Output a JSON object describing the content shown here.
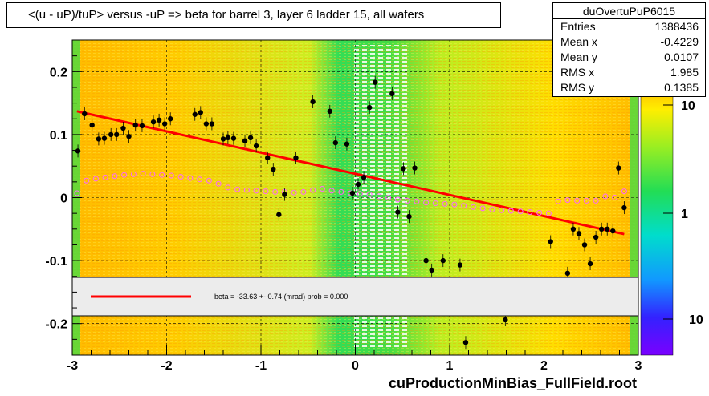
{
  "title": "<(u - uP)/tuP> versus  -uP => beta for barrel 3, layer 6 ladder 15, all wafers",
  "stats": {
    "name": "duOvertuPuP6015",
    "rows": [
      {
        "label": "Entries",
        "value": "1388436"
      },
      {
        "label": "Mean x",
        "value": "-0.4229"
      },
      {
        "label": "Mean y",
        "value": "0.0107"
      },
      {
        "label": "RMS x",
        "value": "1.985"
      },
      {
        "label": "RMS y",
        "value": "0.1385"
      }
    ]
  },
  "legend_text": "beta =  -33.63 +-  0.74 (mrad) prob = 0.000",
  "footer": "cuProductionMinBias_FullField.root",
  "colors": {
    "fit_line": "#ff0000",
    "profile_open": "#ff66ff",
    "points": "#000000",
    "band_green": "#33dd33",
    "background_orange": "#ffcc00"
  },
  "chart_data": {
    "type": "scatter",
    "title": "<(u - uP)/tuP> versus  -uP => beta for barrel 3, layer 6 ladder 15, all wafers",
    "xlim": [
      -3,
      3
    ],
    "ylim": [
      -0.25,
      0.25
    ],
    "xticks": [
      "-3",
      "-2",
      "-1",
      "0",
      "1",
      "2",
      "3"
    ],
    "yticks": [
      "-0.2",
      "-0.1",
      "0",
      "0.1",
      "0.2"
    ],
    "zticks": [
      "10",
      "1",
      "10"
    ],
    "zscale": "log",
    "grid": true,
    "fit_line": {
      "x": [
        -2.95,
        2.85
      ],
      "y": [
        0.137,
        -0.058
      ]
    },
    "series": [
      {
        "marker": "filled-circle",
        "x": [
          -2.94,
          -2.87,
          -2.79,
          -2.72,
          -2.66,
          -2.59,
          -2.53,
          -2.46,
          -2.4,
          -2.33,
          -2.26,
          -2.14,
          -2.08,
          -2.02,
          -1.96,
          -1.7,
          -1.64,
          -1.58,
          -1.52,
          -1.4,
          -1.35,
          -1.29,
          -1.17,
          -1.11,
          -1.05,
          -0.93,
          -0.87,
          -0.81,
          -0.75,
          -0.63,
          -0.45,
          -0.27,
          -0.21,
          -0.09,
          -0.03,
          0.03,
          0.09,
          0.15,
          0.21,
          0.39,
          0.45,
          0.51,
          0.57,
          0.63,
          0.75,
          0.81,
          0.93,
          1.11,
          1.17,
          1.59,
          2.07,
          2.25,
          2.31,
          2.37,
          2.43,
          2.49,
          2.55,
          2.61,
          2.67,
          2.73,
          2.79,
          2.85
        ],
        "y": [
          0.074,
          0.133,
          0.115,
          0.093,
          0.094,
          0.1,
          0.1,
          0.11,
          0.097,
          0.115,
          0.114,
          0.12,
          0.123,
          0.117,
          0.125,
          0.132,
          0.135,
          0.117,
          0.117,
          0.093,
          0.095,
          0.094,
          0.09,
          0.095,
          0.082,
          0.063,
          0.045,
          -0.027,
          0.005,
          0.063,
          0.152,
          0.137,
          0.087,
          0.085,
          0.007,
          0.021,
          0.032,
          0.143,
          0.183,
          0.165,
          -0.023,
          0.046,
          -0.03,
          0.047,
          -0.1,
          -0.115,
          -0.1,
          -0.107,
          -0.23,
          -0.194,
          -0.07,
          -0.12,
          -0.05,
          -0.057,
          -0.075,
          -0.105,
          -0.063,
          -0.05,
          -0.05,
          -0.053,
          0.047,
          -0.016
        ]
      },
      {
        "marker": "open-circle",
        "x": [
          -2.95,
          -2.85,
          -2.75,
          -2.65,
          -2.55,
          -2.45,
          -2.35,
          -2.25,
          -2.15,
          -2.05,
          -1.95,
          -1.85,
          -1.75,
          -1.65,
          -1.55,
          -1.45,
          -1.35,
          -1.25,
          -1.15,
          -1.05,
          -0.95,
          -0.85,
          -0.75,
          -0.65,
          -0.55,
          -0.45,
          -0.35,
          -0.25,
          -0.15,
          -0.05,
          0.05,
          0.15,
          0.25,
          0.35,
          0.45,
          0.55,
          0.65,
          0.75,
          0.85,
          0.95,
          1.05,
          1.15,
          1.25,
          1.35,
          1.45,
          1.55,
          1.65,
          1.75,
          1.85,
          1.95,
          2.05,
          2.15,
          2.25,
          2.35,
          2.45,
          2.55,
          2.65,
          2.75,
          2.85
        ],
        "y": [
          0.007,
          0.027,
          0.03,
          0.032,
          0.034,
          0.036,
          0.037,
          0.038,
          0.037,
          0.036,
          0.035,
          0.033,
          0.031,
          0.029,
          0.027,
          0.022,
          0.016,
          0.013,
          0.012,
          0.011,
          0.01,
          0.009,
          0.009,
          0.008,
          0.009,
          0.012,
          0.014,
          0.011,
          0.009,
          0.007,
          0.006,
          0.005,
          0.002,
          0.0,
          -0.003,
          -0.005,
          -0.006,
          -0.008,
          -0.009,
          -0.01,
          -0.011,
          -0.013,
          -0.015,
          -0.017,
          -0.019,
          -0.02,
          -0.021,
          -0.022,
          -0.023,
          -0.024,
          -0.025,
          -0.006,
          -0.004,
          -0.005,
          -0.005,
          -0.005,
          0.002,
          0.0,
          0.01
        ]
      }
    ]
  }
}
